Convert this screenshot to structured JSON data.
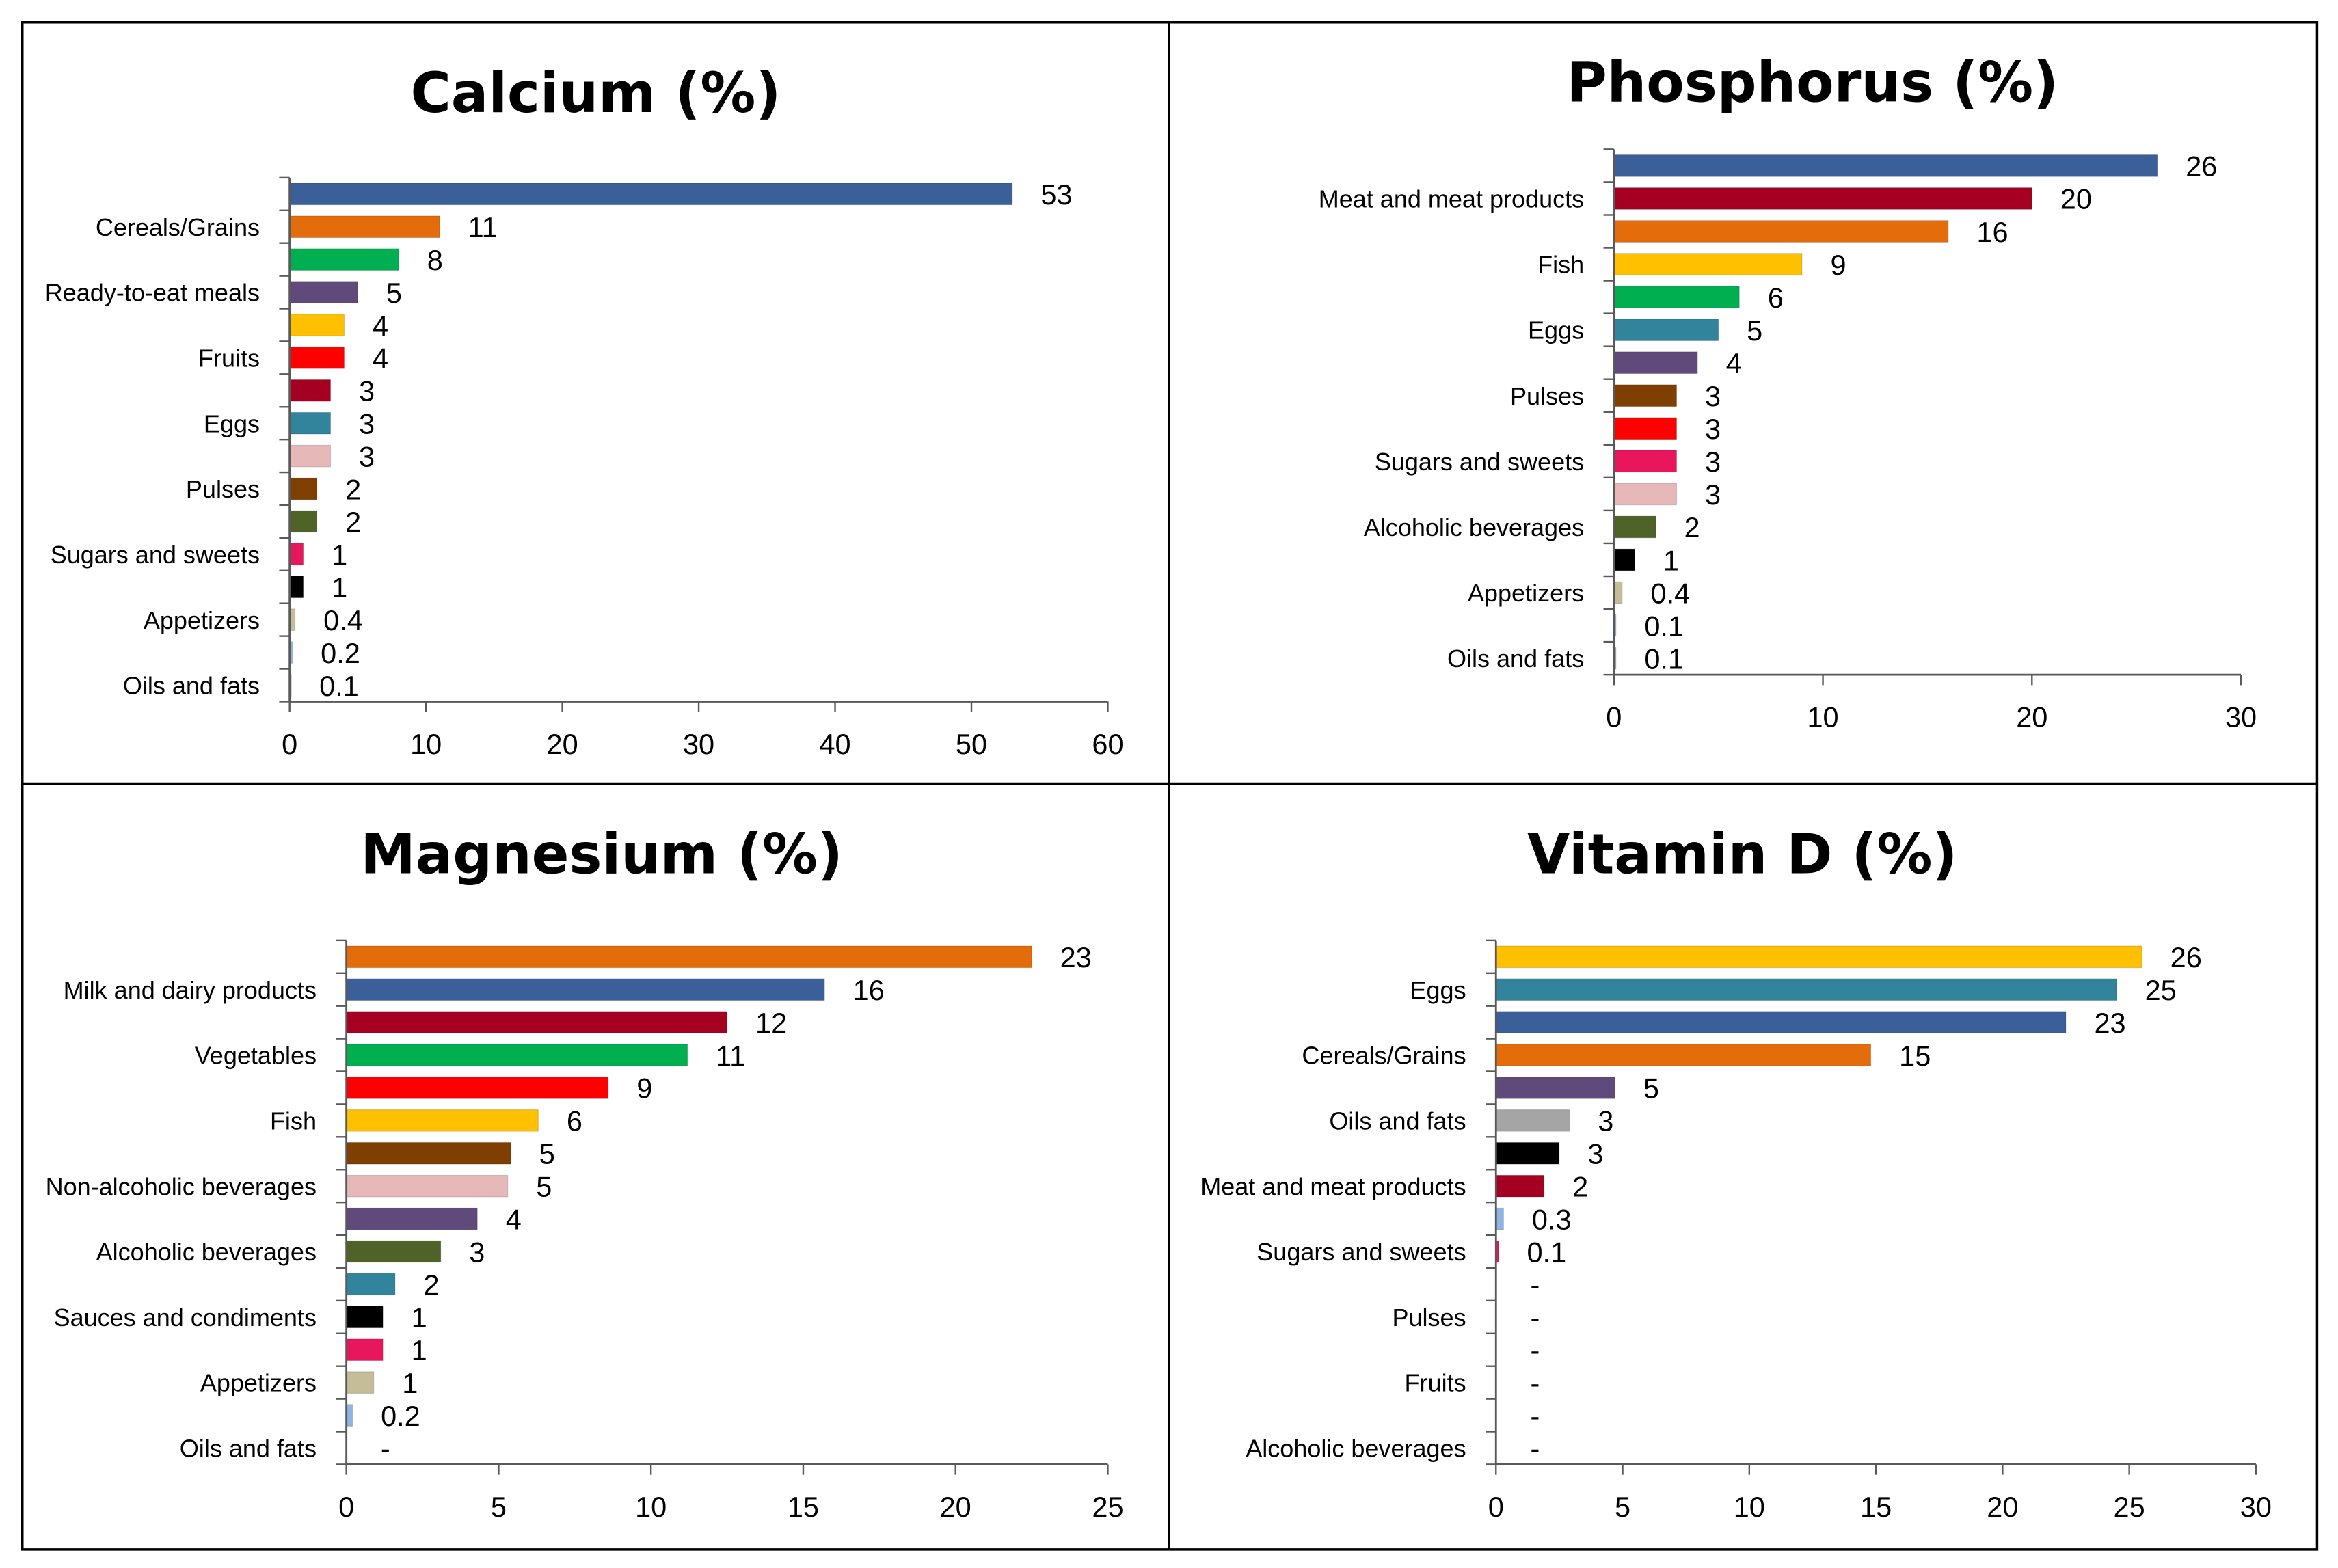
{
  "chart_data": [
    {
      "type": "bar",
      "orientation": "horizontal",
      "title": "Calcium (%)",
      "xlim": [
        0,
        60
      ],
      "xticks": [
        0,
        10,
        20,
        30,
        40,
        50,
        60
      ],
      "category_labels": [
        "Cereals/Grains",
        "Ready-to-eat meals",
        "Fruits",
        "Eggs",
        "Pulses",
        "Sugars and sweets",
        "Appetizers",
        "Oils and fats"
      ],
      "bars": [
        {
          "value": 53,
          "label": "53",
          "color": "#3A5F99"
        },
        {
          "value": 11,
          "label": "11",
          "color": "#E46C0A"
        },
        {
          "value": 8,
          "label": "8",
          "color": "#00B050"
        },
        {
          "value": 5,
          "label": "5",
          "color": "#604A7B"
        },
        {
          "value": 4,
          "label": "4",
          "color": "#FFC000"
        },
        {
          "value": 4,
          "label": "4",
          "color": "#FF0000"
        },
        {
          "value": 3,
          "label": "3",
          "color": "#A50021"
        },
        {
          "value": 3,
          "label": "3",
          "color": "#31849B"
        },
        {
          "value": 3,
          "label": "3",
          "color": "#E6B9B8"
        },
        {
          "value": 2,
          "label": "2",
          "color": "#7F3F00"
        },
        {
          "value": 2,
          "label": "2",
          "color": "#4F6228"
        },
        {
          "value": 1,
          "label": "1",
          "color": "#E8175D"
        },
        {
          "value": 1,
          "label": "1",
          "color": "#000000"
        },
        {
          "value": 0.4,
          "label": "0.4",
          "color": "#C4BD97"
        },
        {
          "value": 0.2,
          "label": "0.2",
          "color": "#8DB4E2"
        },
        {
          "value": 0.1,
          "label": "0.1",
          "color": "#D9D9D9"
        }
      ]
    },
    {
      "type": "bar",
      "orientation": "horizontal",
      "title": "Phosphorus (%)",
      "xlim": [
        0,
        30
      ],
      "xticks": [
        0,
        10,
        20,
        30
      ],
      "category_labels": [
        "Meat and meat products",
        "Fish",
        "Eggs",
        "Pulses",
        "Sugars and sweets",
        "Alcoholic beverages",
        "Appetizers",
        "Oils and fats"
      ],
      "bars": [
        {
          "value": 26,
          "label": "26",
          "color": "#3A5F99"
        },
        {
          "value": 20,
          "label": "20",
          "color": "#A50021"
        },
        {
          "value": 16,
          "label": "16",
          "color": "#E46C0A"
        },
        {
          "value": 9,
          "label": "9",
          "color": "#FFC000"
        },
        {
          "value": 6,
          "label": "6",
          "color": "#00B050"
        },
        {
          "value": 5,
          "label": "5",
          "color": "#31849B"
        },
        {
          "value": 4,
          "label": "4",
          "color": "#604A7B"
        },
        {
          "value": 3,
          "label": "3",
          "color": "#7F3F00"
        },
        {
          "value": 3,
          "label": "3",
          "color": "#FF0000"
        },
        {
          "value": 3,
          "label": "3",
          "color": "#E8175D"
        },
        {
          "value": 3,
          "label": "3",
          "color": "#E6B9B8"
        },
        {
          "value": 2,
          "label": "2",
          "color": "#4F6228"
        },
        {
          "value": 1,
          "label": "1",
          "color": "#000000"
        },
        {
          "value": 0.4,
          "label": "0.4",
          "color": "#C4BD97"
        },
        {
          "value": 0.1,
          "label": "0.1",
          "color": "#8DB4E2"
        },
        {
          "value": 0.1,
          "label": "0.1",
          "color": "#A5A5A5"
        }
      ]
    },
    {
      "type": "bar",
      "orientation": "horizontal",
      "title": "Magnesium (%)",
      "xlim": [
        0,
        25
      ],
      "xticks": [
        0,
        5,
        10,
        15,
        20,
        25
      ],
      "category_labels": [
        "Milk and dairy products",
        "Vegetables",
        "Fish",
        "Non-alcoholic beverages",
        "Alcoholic beverages",
        "Sauces and condiments",
        "Appetizers",
        "Oils and fats"
      ],
      "bars": [
        {
          "value": 22.5,
          "label": "23",
          "color": "#E46C0A"
        },
        {
          "value": 15.7,
          "label": "16",
          "color": "#3A5F99"
        },
        {
          "value": 12.5,
          "label": "12",
          "color": "#A50021"
        },
        {
          "value": 11.2,
          "label": "11",
          "color": "#00B050"
        },
        {
          "value": 8.6,
          "label": "9",
          "color": "#FF0000"
        },
        {
          "value": 6.3,
          "label": "6",
          "color": "#FFC000"
        },
        {
          "value": 5.4,
          "label": "5",
          "color": "#7F3F00"
        },
        {
          "value": 5.3,
          "label": "5",
          "color": "#E6B9B8"
        },
        {
          "value": 4.3,
          "label": "4",
          "color": "#604A7B"
        },
        {
          "value": 3.1,
          "label": "3",
          "color": "#4F6228"
        },
        {
          "value": 1.6,
          "label": "2",
          "color": "#31849B"
        },
        {
          "value": 1.2,
          "label": "1",
          "color": "#000000"
        },
        {
          "value": 1.2,
          "label": "1",
          "color": "#E8175D"
        },
        {
          "value": 0.9,
          "label": "1",
          "color": "#C4BD97"
        },
        {
          "value": 0.2,
          "label": "0.2",
          "color": "#8DB4E2"
        },
        {
          "value": 0,
          "label": "-",
          "color": "#A5A5A5"
        }
      ]
    },
    {
      "type": "bar",
      "orientation": "horizontal",
      "title": "Vitamin D (%)",
      "xlim": [
        0,
        30
      ],
      "xticks": [
        0,
        5,
        10,
        15,
        20,
        25,
        30
      ],
      "category_labels": [
        "Eggs",
        "Cereals/Grains",
        "Oils and fats",
        "Meat and meat products",
        "Sugars and sweets",
        "Pulses",
        "Fruits",
        "Alcoholic beverages"
      ],
      "bars": [
        {
          "value": 25.5,
          "label": "26",
          "color": "#FFC000"
        },
        {
          "value": 24.5,
          "label": "25",
          "color": "#31849B"
        },
        {
          "value": 22.5,
          "label": "23",
          "color": "#3A5F99"
        },
        {
          "value": 14.8,
          "label": "15",
          "color": "#E46C0A"
        },
        {
          "value": 4.7,
          "label": "5",
          "color": "#604A7B"
        },
        {
          "value": 2.9,
          "label": "3",
          "color": "#A5A5A5"
        },
        {
          "value": 2.5,
          "label": "3",
          "color": "#000000"
        },
        {
          "value": 1.9,
          "label": "2",
          "color": "#A50021"
        },
        {
          "value": 0.3,
          "label": "0.3",
          "color": "#8DB4E2"
        },
        {
          "value": 0.1,
          "label": "0.1",
          "color": "#E8175D"
        },
        {
          "value": 0,
          "label": "-",
          "color": "#FFFFFF"
        },
        {
          "value": 0,
          "label": "-",
          "color": "#FFFFFF"
        },
        {
          "value": 0,
          "label": "-",
          "color": "#FFFFFF"
        },
        {
          "value": 0,
          "label": "-",
          "color": "#FFFFFF"
        },
        {
          "value": 0,
          "label": "-",
          "color": "#FFFFFF"
        },
        {
          "value": 0,
          "label": "-",
          "color": "#FFFFFF"
        }
      ]
    }
  ]
}
